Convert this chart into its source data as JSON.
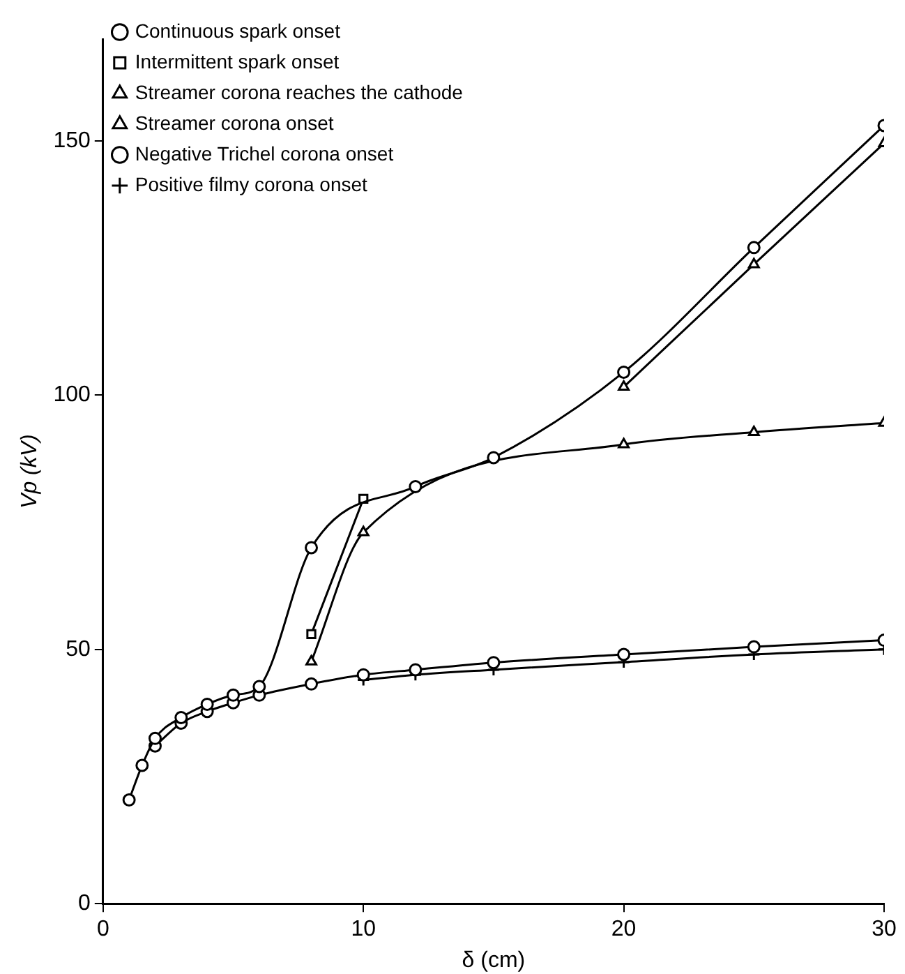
{
  "chart_data": {
    "type": "line",
    "xlabel": "δ (cm)",
    "ylabel": "Vp (kV)",
    "xlim": [
      0,
      30
    ],
    "ylim": [
      0,
      170
    ],
    "xticks": [
      0,
      10,
      20,
      30
    ],
    "yticks": [
      0,
      50,
      100,
      150
    ],
    "grid": false,
    "legend": "top left",
    "line_style": "solid",
    "series": [
      {
        "name": "Continuous spark onset",
        "color": "#000000",
        "marker": "circle",
        "x": [
          1,
          1.5,
          2,
          3,
          4,
          5,
          6,
          8,
          12,
          15,
          20,
          25,
          30
        ],
        "values": [
          20.4,
          27.2,
          32.5,
          36.6,
          39.2,
          41,
          42.7,
          70,
          82,
          87.7,
          104.5,
          129,
          153
        ]
      },
      {
        "name": "Intermittent spark onset",
        "color": "#000000",
        "marker": "square",
        "x": [
          8,
          10
        ],
        "values": [
          53,
          79.6
        ]
      },
      {
        "name": "Streamer corona reaches the cathode",
        "color": "#000000",
        "marker": "triangle",
        "x": [
          20,
          25,
          30
        ],
        "values": [
          101.6,
          125.7,
          149.5
        ]
      },
      {
        "name": "Streamer corona onset",
        "color": "#000000",
        "marker": "triangle",
        "x": [
          8,
          10,
          20,
          25,
          30
        ],
        "values": [
          47.6,
          73,
          90.3,
          92.7,
          94.5
        ]
      },
      {
        "name": "Negative Trichel corona onset",
        "color": "#000000",
        "marker": "circle",
        "x": [
          2,
          3,
          4,
          5,
          6,
          8,
          10,
          12,
          15,
          20,
          25,
          30
        ],
        "values": [
          31,
          35.5,
          37.8,
          39.5,
          41,
          43.2,
          45,
          46,
          47.4,
          49,
          50.5,
          51.8
        ]
      },
      {
        "name": "Positive filmy corona onset",
        "color": "#000000",
        "marker": "cross",
        "x": [
          10,
          12,
          15,
          20,
          25,
          30
        ],
        "values": [
          44,
          45,
          46,
          47.5,
          49,
          50
        ]
      }
    ]
  }
}
